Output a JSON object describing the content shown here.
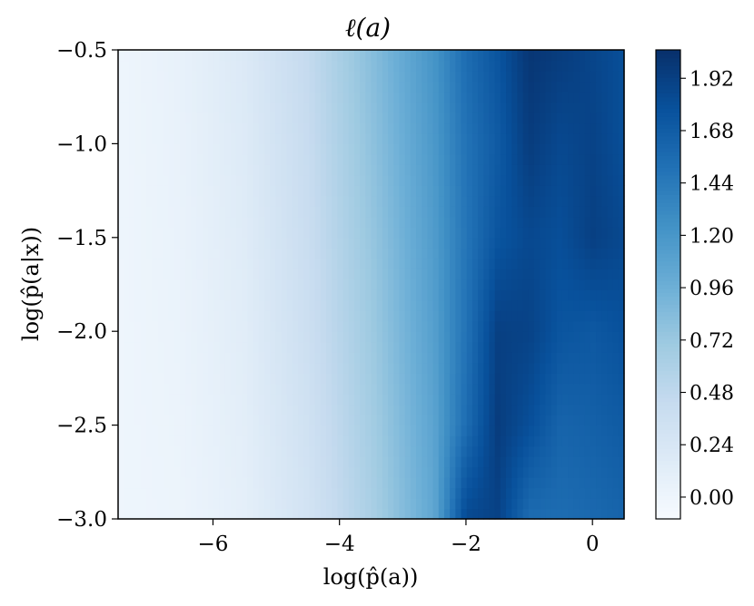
{
  "chart_data": {
    "type": "heatmap",
    "subtype": "filled-contour",
    "title": "ℓ(a)",
    "xlabel": "log(p̂(a))",
    "ylabel": "log(p̂(a|x))",
    "xlim": [
      -7.5,
      0.5
    ],
    "ylim": [
      -3.0,
      -0.5
    ],
    "x_ticks": [
      -6,
      -4,
      -2,
      0
    ],
    "x_tick_labels": [
      "−6",
      "−4",
      "−2",
      "0"
    ],
    "y_ticks": [
      -0.5,
      -1.0,
      -1.5,
      -2.0,
      -2.5,
      -3.0
    ],
    "y_tick_labels": [
      "−0.5",
      "−1.0",
      "−1.5",
      "−2.0",
      "−2.5",
      "−3.0"
    ],
    "colormap": "Blues",
    "colorbar": {
      "range": [
        -0.1,
        2.05
      ],
      "ticks": [
        0.0,
        0.24,
        0.48,
        0.72,
        0.96,
        1.2,
        1.44,
        1.68,
        1.92
      ],
      "tick_labels": [
        "0.00",
        "0.24",
        "0.48",
        "0.72",
        "0.96",
        "1.20",
        "1.44",
        "1.68",
        "1.92"
      ]
    },
    "x": [
      -7.5,
      -6.5,
      -5.5,
      -4.5,
      -3.5,
      -2.5,
      -2.0,
      -1.5,
      -1.0,
      -0.5,
      0.0,
      0.5
    ],
    "y": [
      -3.0,
      -2.5,
      -2.0,
      -1.5,
      -1.0,
      -0.5
    ],
    "z": [
      [
        0.0,
        0.02,
        0.1,
        0.3,
        0.62,
        1.05,
        1.85,
        1.9,
        1.55,
        1.55,
        1.58,
        1.62
      ],
      [
        0.0,
        0.03,
        0.12,
        0.33,
        0.66,
        1.08,
        1.55,
        1.95,
        1.8,
        1.62,
        1.65,
        1.7
      ],
      [
        0.0,
        0.04,
        0.14,
        0.37,
        0.7,
        1.12,
        1.5,
        1.92,
        1.9,
        1.75,
        1.72,
        1.78
      ],
      [
        0.0,
        0.05,
        0.16,
        0.4,
        0.74,
        1.15,
        1.48,
        1.75,
        1.85,
        1.8,
        1.92,
        1.85
      ],
      [
        0.0,
        0.06,
        0.18,
        0.42,
        0.78,
        1.18,
        1.5,
        1.7,
        1.95,
        1.85,
        1.9,
        1.8
      ],
      [
        0.0,
        0.07,
        0.2,
        0.45,
        0.82,
        1.22,
        1.55,
        1.75,
        2.0,
        1.95,
        1.88,
        1.8
      ]
    ]
  }
}
